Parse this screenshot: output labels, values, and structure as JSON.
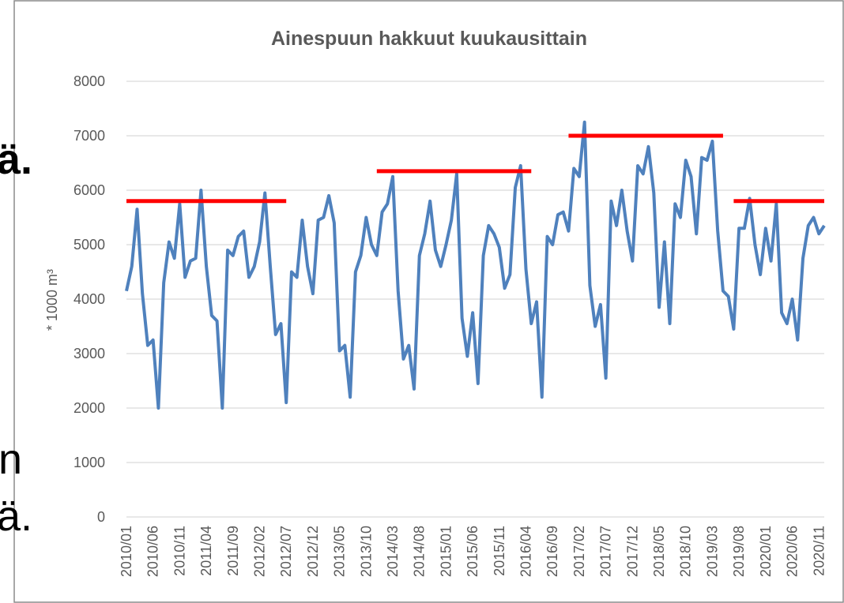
{
  "chart_data": {
    "type": "line",
    "title": "Ainespuun hakkuut kuukausittain",
    "y_label": "* 1000 m³",
    "categories": [
      "2010/01",
      null,
      null,
      null,
      null,
      "2010/06",
      null,
      null,
      null,
      null,
      "2010/11",
      null,
      null,
      null,
      null,
      "2011/04",
      null,
      null,
      null,
      null,
      "2011/09",
      null,
      null,
      null,
      null,
      "2012/02",
      null,
      null,
      null,
      null,
      "2012/07",
      null,
      null,
      null,
      null,
      "2012/12",
      null,
      null,
      null,
      null,
      "2013/05",
      null,
      null,
      null,
      null,
      "2013/10",
      null,
      null,
      null,
      null,
      "2014/03",
      null,
      null,
      null,
      null,
      "2014/08",
      null,
      null,
      null,
      null,
      "2015/01",
      null,
      null,
      null,
      null,
      "2015/06",
      null,
      null,
      null,
      null,
      "2015/11",
      null,
      null,
      null,
      null,
      "2016/04",
      null,
      null,
      null,
      null,
      "2016/09",
      null,
      null,
      null,
      null,
      "2017/02",
      null,
      null,
      null,
      null,
      "2017/07",
      null,
      null,
      null,
      null,
      "2017/12",
      null,
      null,
      null,
      null,
      "2018/05",
      null,
      null,
      null,
      null,
      "2018/10",
      null,
      null,
      null,
      null,
      "2019/03",
      null,
      null,
      null,
      null,
      "2019/08",
      null,
      null,
      null,
      null,
      "2020/01",
      null,
      null,
      null,
      null,
      "2020/06",
      null,
      null,
      null,
      null,
      "2020/11",
      null
    ],
    "series": [
      {
        "color": "#4f81bd",
        "width": 4,
        "values": [
          4150,
          4600,
          5650,
          4100,
          3150,
          3250,
          2000,
          4300,
          5050,
          4750,
          5750,
          4400,
          4700,
          4750,
          6000,
          4600,
          3700,
          3600,
          2000,
          4900,
          4800,
          5150,
          5250,
          4400,
          4600,
          5050,
          5950,
          4600,
          3350,
          3550,
          2100,
          4500,
          4400,
          5450,
          4600,
          4100,
          5450,
          5500,
          5900,
          5400,
          3050,
          3150,
          2200,
          4500,
          4800,
          5500,
          5000,
          4800,
          5600,
          5750,
          6250,
          4150,
          2900,
          3150,
          2350,
          4800,
          5200,
          5800,
          4900,
          4600,
          5000,
          5450,
          6300,
          3650,
          2950,
          3750,
          2450,
          4800,
          5350,
          5200,
          4950,
          4200,
          4450,
          6050,
          6450,
          4550,
          3550,
          3950,
          2200,
          5150,
          5000,
          5550,
          5600,
          5250,
          6400,
          6250,
          7250,
          4250,
          3500,
          3900,
          2550,
          5800,
          5350,
          6000,
          5250,
          4700,
          6450,
          6300,
          6800,
          5950,
          3850,
          5050,
          3550,
          5750,
          5500,
          6550,
          6250,
          5200,
          6600,
          6550,
          6900,
          5250,
          4150,
          4050,
          3450,
          5300,
          5300,
          5850,
          5000,
          4450,
          5300,
          4700,
          5750,
          3750,
          3550,
          4000,
          3250,
          4750,
          5350,
          5500,
          5200,
          5350
        ]
      },
      {
        "color": "#ff0000",
        "width": 5,
        "values": [
          5800,
          5800,
          5800,
          5800,
          5800,
          5800,
          5800,
          5800,
          5800,
          5800,
          5800,
          5800,
          5800,
          5800,
          5800,
          5800,
          5800,
          5800,
          5800,
          5800,
          5800,
          5800,
          5800,
          5800,
          5800,
          5800,
          5800,
          5800,
          5800,
          5800,
          5800,
          null,
          null,
          null,
          null,
          null,
          null,
          null,
          null,
          null,
          null,
          null,
          null,
          null,
          null,
          null,
          null,
          6350,
          6350,
          6350,
          6350,
          6350,
          6350,
          6350,
          6350,
          6350,
          6350,
          6350,
          6350,
          6350,
          6350,
          6350,
          6350,
          6350,
          6350,
          6350,
          6350,
          6350,
          6350,
          6350,
          6350,
          6350,
          6350,
          6350,
          6350,
          6350,
          6350,
          null,
          null,
          null,
          null,
          null,
          null,
          7000,
          7000,
          7000,
          7000,
          7000,
          7000,
          7000,
          7000,
          7000,
          7000,
          7000,
          7000,
          7000,
          7000,
          7000,
          7000,
          7000,
          7000,
          7000,
          7000,
          7000,
          7000,
          7000,
          7000,
          7000,
          7000,
          7000,
          7000,
          7000,
          7000,
          null,
          5800,
          5800,
          5800,
          5800,
          5800,
          5800,
          5800,
          5800,
          5800,
          5800,
          5800,
          5800,
          5800,
          5800,
          5800,
          5800,
          5800,
          5800
        ]
      }
    ],
    "ylim": [
      0,
      8000
    ],
    "yticks": [
      0,
      1000,
      2000,
      3000,
      4000,
      5000,
      6000,
      7000,
      8000
    ],
    "grid": true
  },
  "background_fragments": [
    "ä.",
    "n",
    "ä."
  ]
}
